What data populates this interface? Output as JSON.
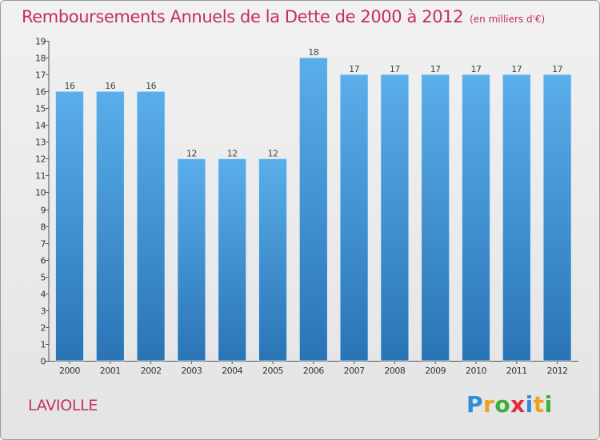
{
  "title": "Remboursements Annuels de la Dette de 2000 à 2012",
  "subtitle": "(en milliers d'€)",
  "commune": "LAVIOLLE",
  "logo": {
    "letters": [
      "P",
      "r",
      "o",
      "x",
      "i",
      "t",
      "i"
    ],
    "colors": [
      "#2e8fd8",
      "#f0a020",
      "#3ab03a",
      "#e03040",
      "#2e8fd8",
      "#f0a020",
      "#3ab03a"
    ]
  },
  "colors": {
    "bar_light": "#5aaeea",
    "bar_dark": "#2a74b6",
    "title": "#c0305f"
  },
  "chart_data": {
    "type": "bar",
    "title": "Remboursements Annuels de la Dette de 2000 à 2012",
    "xlabel": "",
    "ylabel": "",
    "categories": [
      "2000",
      "2001",
      "2002",
      "2003",
      "2004",
      "2005",
      "2006",
      "2007",
      "2008",
      "2009",
      "2010",
      "2011",
      "2012"
    ],
    "values": [
      16,
      16,
      16,
      12,
      12,
      12,
      18,
      17,
      17,
      17,
      17,
      17,
      17
    ],
    "ylim": [
      0,
      19
    ],
    "yticks": [
      0,
      1,
      2,
      3,
      4,
      5,
      6,
      7,
      8,
      9,
      10,
      11,
      12,
      13,
      14,
      15,
      16,
      17,
      18,
      19
    ],
    "grid": false,
    "data_labels": true
  }
}
